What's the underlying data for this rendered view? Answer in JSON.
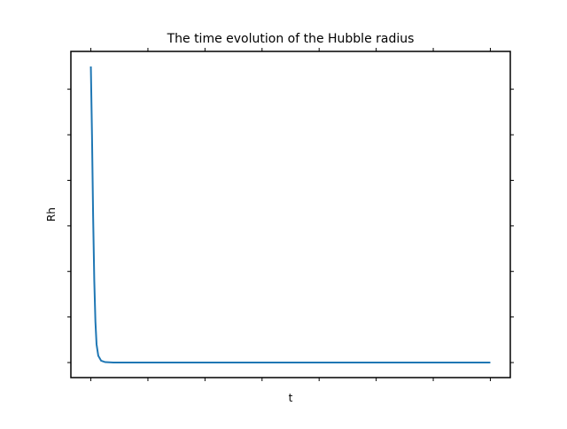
{
  "chart_data": {
    "type": "line",
    "title": "The time evolution of the Hubble radius",
    "x_label": "t",
    "y_label": "Rh",
    "x": [
      0,
      0.02,
      0.04,
      0.06,
      0.08,
      0.1,
      0.13,
      0.18,
      0.25,
      0.4,
      1,
      2,
      3,
      4,
      5,
      6,
      7
    ],
    "series": [
      {
        "color": "#1f77b4",
        "values": [
          6.5,
          5.0,
          3.2,
          1.8,
          0.9,
          0.4,
          0.15,
          0.04,
          0.01,
          0,
          0,
          0,
          0,
          0,
          0,
          0,
          0
        ]
      }
    ],
    "xlim": [
      -0.35,
      7.35
    ],
    "ylim": [
      -0.33,
      6.83
    ],
    "xticks": [
      0,
      1,
      2,
      3,
      4,
      5,
      6,
      7
    ],
    "yticks": [
      0,
      1,
      2,
      3,
      4,
      5,
      6
    ]
  }
}
